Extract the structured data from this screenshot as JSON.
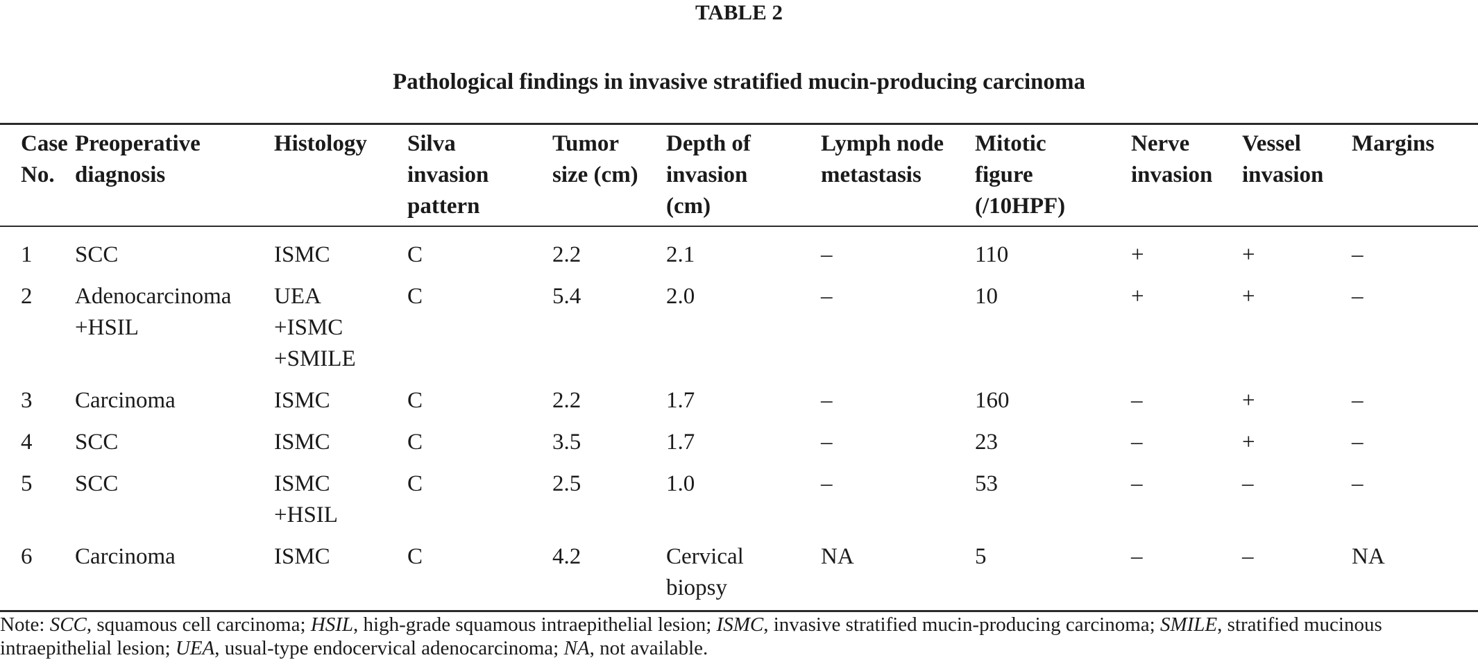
{
  "table_label": "TABLE 2",
  "table_title": "Pathological findings in invasive stratified mucin-producing carcinoma",
  "columns": [
    "Case\nNo.",
    "Preoperative\ndiagnosis",
    "Histology",
    "Silva\ninvasion\npattern",
    "Tumor\nsize (cm)",
    "Depth of\ninvasion\n(cm)",
    "Lymph node\nmetastasis",
    "Mitotic\nfigure\n(/10HPF)",
    "Nerve\ninvasion",
    "Vessel\ninvasion",
    "Margins"
  ],
  "rows": [
    [
      "1",
      "SCC",
      "ISMC",
      "C",
      "2.2",
      "2.1",
      "–",
      "110",
      "+",
      "+",
      "–"
    ],
    [
      "2",
      "Adenocarcinoma\n+HSIL",
      "UEA\n+ISMC\n+SMILE",
      "C",
      "5.4",
      "2.0",
      "–",
      "10",
      "+",
      "+",
      "–"
    ],
    [
      "3",
      "Carcinoma",
      "ISMC",
      "C",
      "2.2",
      "1.7",
      "–",
      "160",
      "–",
      "+",
      "–"
    ],
    [
      "4",
      "SCC",
      "ISMC",
      "C",
      "3.5",
      "1.7",
      "–",
      "23",
      "–",
      "+",
      "–"
    ],
    [
      "5",
      "SCC",
      "ISMC\n+HSIL",
      "C",
      "2.5",
      "1.0",
      "–",
      "53",
      "–",
      "–",
      "–"
    ],
    [
      "6",
      "Carcinoma",
      "ISMC",
      "C",
      "4.2",
      "Cervical\nbiopsy",
      "NA",
      "5",
      "–",
      "–",
      "NA"
    ]
  ],
  "note": {
    "prefix": "Note: ",
    "items": [
      {
        "abbr": "SCC",
        "definition": ", squamous cell carcinoma; "
      },
      {
        "abbr": "HSIL",
        "definition": ", high-grade squamous intraepithelial lesion; "
      },
      {
        "abbr": "ISMC",
        "definition": ", invasive stratified mucin-producing carcinoma; "
      },
      {
        "abbr": "SMILE",
        "definition": ", stratified mucinous intraepithelial lesion; "
      },
      {
        "abbr": "UEA",
        "definition": ", usual-type endocervical adenocarcinoma; "
      },
      {
        "abbr": "NA",
        "definition": ", not available."
      }
    ]
  }
}
